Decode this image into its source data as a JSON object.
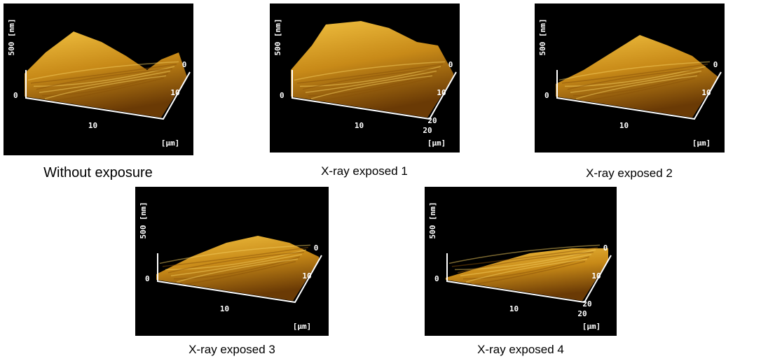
{
  "panels": [
    {
      "caption": "Without exposure",
      "z_label": "500 [nm]",
      "z_zero": "0",
      "x_ticks": [
        "10"
      ],
      "y_ticks": [
        "0",
        "10"
      ],
      "unit": "[µm]"
    },
    {
      "caption": "X-ray exposed 1",
      "z_label": "500 [nm]",
      "z_zero": "0",
      "x_ticks": [
        "10",
        "20"
      ],
      "y_ticks": [
        "0",
        "10",
        "20"
      ],
      "unit": "[µm]"
    },
    {
      "caption": "X-ray exposed 2",
      "z_label": "500 [nm]",
      "z_zero": "0",
      "x_ticks": [
        "10"
      ],
      "y_ticks": [
        "0",
        "10"
      ],
      "unit": "[µm]"
    },
    {
      "caption": "X-ray exposed 3",
      "z_label": "500 [nm]",
      "z_zero": "0",
      "x_ticks": [
        "10"
      ],
      "y_ticks": [
        "0",
        "10"
      ],
      "unit": "[µm]"
    },
    {
      "caption": "X-ray exposed 4",
      "z_label": "500 [nm]",
      "z_zero": "0",
      "x_ticks": [
        "10",
        "20"
      ],
      "y_ticks": [
        "0",
        "10",
        "20"
      ],
      "unit": "[µm]"
    }
  ]
}
